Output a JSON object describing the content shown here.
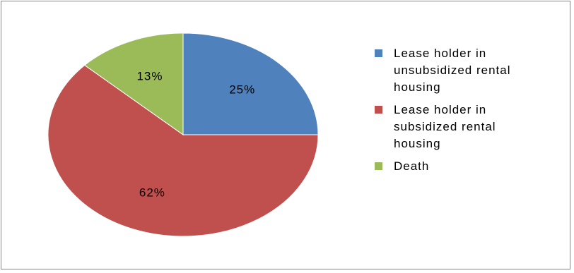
{
  "chart_data": {
    "type": "pie",
    "title": "",
    "legend_position": "right",
    "slices": [
      {
        "name": "Lease holder in unsubsidized rental housing",
        "value": 25,
        "label": "25%",
        "color": "#4F81BD"
      },
      {
        "name": "Lease holder in subsidized rental housing",
        "value": 62,
        "label": "62%",
        "color": "#C0504D"
      },
      {
        "name": "Death",
        "value": 13,
        "label": "13%",
        "color": "#9BBB59"
      }
    ]
  }
}
